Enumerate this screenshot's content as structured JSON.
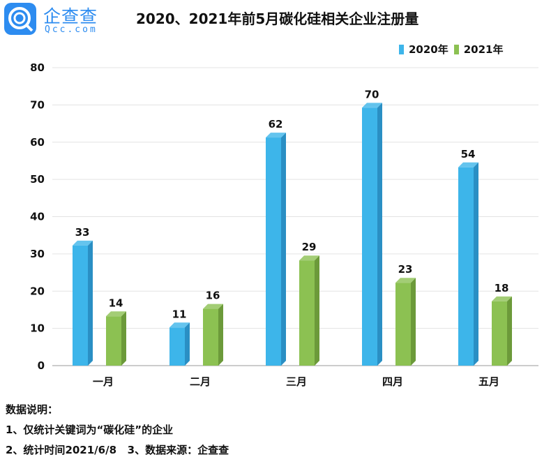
{
  "logo": {
    "name": "企查查",
    "sub": "Qcc.com"
  },
  "colors": {
    "series2020": "#3db5ea",
    "series2020_side": "#2a8fc4",
    "series2021": "#8cc152",
    "series2021_side": "#6c9a3a"
  },
  "chart_data": {
    "type": "bar",
    "title": "2020、2021年前5月碳化硅相关企业注册量",
    "categories": [
      "一月",
      "二月",
      "三月",
      "四月",
      "五月"
    ],
    "series": [
      {
        "name": "2020年",
        "values": [
          33,
          11,
          62,
          70,
          54
        ]
      },
      {
        "name": "2021年",
        "values": [
          14,
          16,
          29,
          23,
          18
        ]
      }
    ],
    "ylim": [
      0,
      80
    ],
    "yticks": [
      0,
      10,
      20,
      30,
      40,
      50,
      60,
      70,
      80
    ],
    "grid": true,
    "legend": "top-right",
    "style": "3d"
  },
  "notes": {
    "heading": "数据说明：",
    "line1": "1、仅统计关键词为“碳化硅”的企业",
    "line2": "2、统计时间2021/6/8   3、数据来源：企查查"
  }
}
